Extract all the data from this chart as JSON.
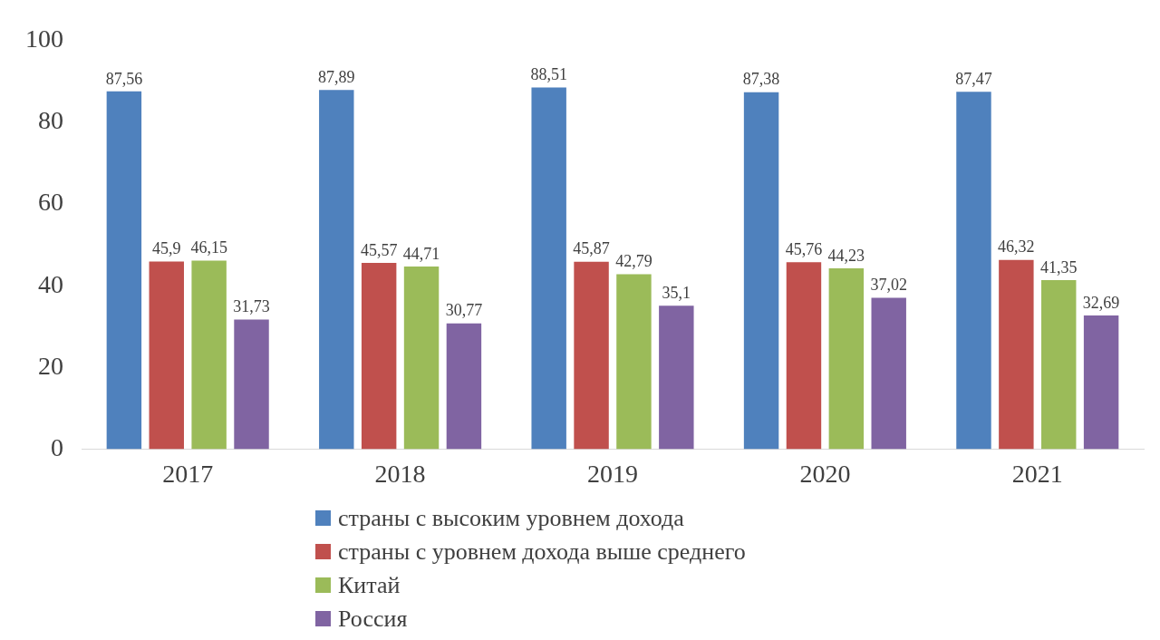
{
  "chart_data": {
    "type": "bar",
    "categories": [
      "2017",
      "2018",
      "2019",
      "2020",
      "2021"
    ],
    "series": [
      {
        "name": "страны с высоким уровнем дохода",
        "color": "#4f81bd",
        "values": [
          87.56,
          87.89,
          88.51,
          87.38,
          87.47
        ],
        "value_labels": [
          "87,56",
          "87,89",
          "88,51",
          "87,38",
          "87,47"
        ]
      },
      {
        "name": "страны с уровнем дохода выше среднего",
        "color": "#c0504d",
        "values": [
          45.9,
          45.57,
          45.87,
          45.76,
          46.32
        ],
        "value_labels": [
          "45,9",
          "45,57",
          "45,87",
          "45,76",
          "46,32"
        ]
      },
      {
        "name": "Китай",
        "color": "#9bbb59",
        "values": [
          46.15,
          44.71,
          42.79,
          44.23,
          41.35
        ],
        "value_labels": [
          "46,15",
          "44,71",
          "42,79",
          "44,23",
          "41,35"
        ]
      },
      {
        "name": "Россия",
        "color": "#8064a2",
        "values": [
          31.73,
          30.77,
          35.1,
          37.02,
          32.69
        ],
        "value_labels": [
          "31,73",
          "30,77",
          "35,1",
          "37,02",
          "32,69"
        ]
      }
    ],
    "ylim": [
      0,
      100
    ],
    "yticks": [
      0,
      20,
      40,
      60,
      80,
      100
    ],
    "grid": false,
    "legend": "bottom"
  }
}
